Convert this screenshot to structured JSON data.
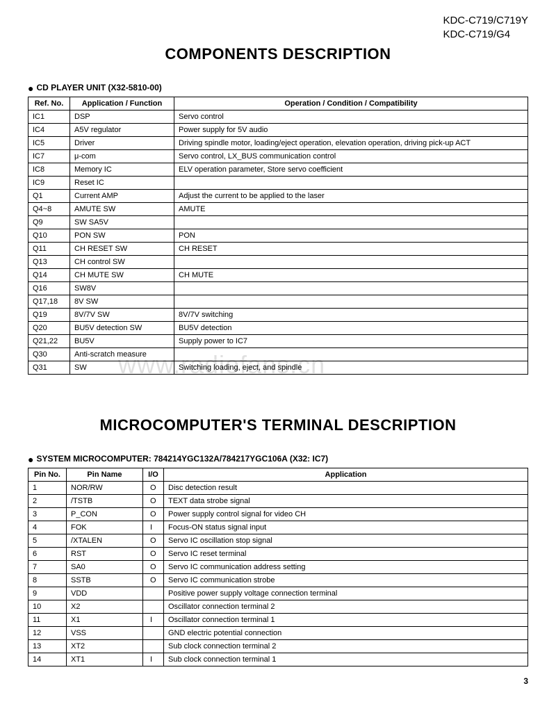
{
  "header": {
    "model_line1": "KDC-C719/C719Y",
    "model_line2": "KDC-C719/G4"
  },
  "title1": "COMPONENTS DESCRIPTION",
  "section1": {
    "label": "CD PLAYER UNIT (X32-5810-00)",
    "columns": [
      "Ref. No.",
      "Application / Function",
      "Operation / Condition / Compatibility"
    ],
    "rows": [
      [
        "IC1",
        "DSP",
        "Servo control"
      ],
      [
        "IC4",
        "A5V regulator",
        "Power supply for 5V audio"
      ],
      [
        "IC5",
        "Driver",
        "Driving spindle motor, loading/eject operation, elevation operation, driving pick-up ACT"
      ],
      [
        "IC7",
        "μ-com",
        "Servo control, LX_BUS communication control"
      ],
      [
        "IC8",
        "Memory IC",
        "ELV operation parameter, Store servo coefficient"
      ],
      [
        "IC9",
        "Reset IC",
        ""
      ],
      [
        "Q1",
        "Current AMP",
        "Adjust the current to be applied to the laser"
      ],
      [
        "Q4~8",
        "AMUTE SW",
        "AMUTE"
      ],
      [
        "Q9",
        "SW SA5V",
        ""
      ],
      [
        "Q10",
        "PON SW",
        "PON"
      ],
      [
        "Q11",
        "CH RESET SW",
        "CH RESET"
      ],
      [
        "Q13",
        "CH control SW",
        ""
      ],
      [
        "Q14",
        "CH MUTE SW",
        "CH MUTE"
      ],
      [
        "Q16",
        "SW8V",
        ""
      ],
      [
        "Q17,18",
        "8V SW",
        ""
      ],
      [
        "Q19",
        "8V/7V SW",
        "8V/7V switching"
      ],
      [
        "Q20",
        "BU5V detection SW",
        "BU5V detection"
      ],
      [
        "Q21,22",
        "BU5V",
        "Supply power to IC7"
      ],
      [
        "Q30",
        "Anti-scratch measure",
        ""
      ],
      [
        "Q31",
        "SW",
        "Switching loading, eject, and spindle"
      ]
    ]
  },
  "title2": "MICROCOMPUTER'S TERMINAL DESCRIPTION",
  "section2": {
    "label": "SYSTEM MICROCOMPUTER: 784214YGC132A/784217YGC106A (X32: IC7)",
    "columns": [
      "Pin No.",
      "Pin Name",
      "I/O",
      "Application"
    ],
    "rows": [
      [
        "1",
        "NOR/RW",
        "O",
        "Disc detection result"
      ],
      [
        "2",
        "/TSTB",
        "O",
        "TEXT data strobe signal"
      ],
      [
        "3",
        "P_CON",
        "O",
        "Power supply control signal for video CH"
      ],
      [
        "4",
        "FOK",
        "I",
        "Focus-ON status signal input"
      ],
      [
        "5",
        "/XTALEN",
        "O",
        "Servo IC oscillation stop signal"
      ],
      [
        "6",
        "RST",
        "O",
        "Servo IC reset terminal"
      ],
      [
        "7",
        "SA0",
        "O",
        "Servo IC communication address setting"
      ],
      [
        "8",
        "SSTB",
        "O",
        "Servo IC communication strobe"
      ],
      [
        "9",
        "VDD",
        "",
        "Positive power supply voltage connection terminal"
      ],
      [
        "10",
        "X2",
        "",
        "Oscillator connection terminal 2"
      ],
      [
        "11",
        "X1",
        "I",
        "Oscillator connection terminal 1"
      ],
      [
        "12",
        "VSS",
        "",
        "GND electric potential connection"
      ],
      [
        "13",
        "XT2",
        "",
        "Sub clock connection terminal 2"
      ],
      [
        "14",
        "XT1",
        "I",
        "Sub clock connection terminal 1"
      ]
    ]
  },
  "watermark": "www.radiofans.cn",
  "page_number": "3"
}
